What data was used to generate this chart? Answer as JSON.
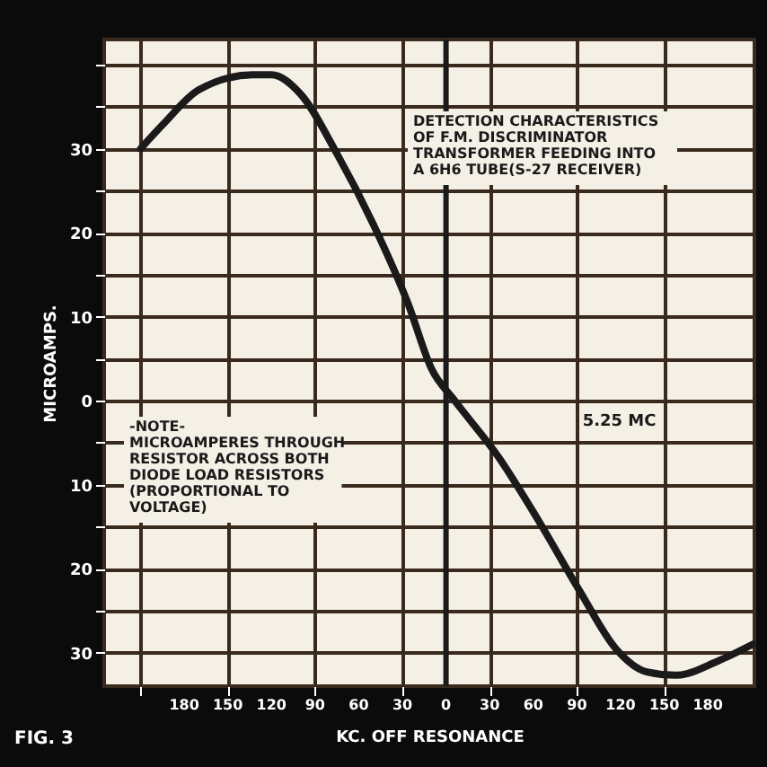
{
  "chart_data": {
    "type": "line",
    "xlabel": "KC. OFF RESONANCE",
    "ylabel": "MICROAMPS.",
    "annotations": [
      "DETECTION CHARACTERISTICS\nOF F.M. DISCRIMINATOR\nTRANSFORMER FEEDING INTO\nA 6H6 TUBE(S-27 RECEIVER)",
      "-NOTE-\nMICROAMPERES THROUGH\nRESISTOR ACROSS BOTH\nDIODE LOAD RESISTORS\n(PROPORTIONAL TO\nVOLTAGE)",
      "FIG. 3"
    ],
    "x": [
      -210,
      -194,
      -170,
      -133,
      -120,
      -100,
      -75,
      -50,
      -26,
      -10,
      6,
      36,
      64,
      92,
      117,
      138,
      158,
      187,
      211
    ],
    "series": [
      {
        "color": "#1a1a1a",
        "values": [
          30,
          33,
          37,
          38.8,
          38.8,
          36.5,
          29.4,
          21,
          11.5,
          3.8,
          0,
          -6.7,
          -14.4,
          -22.7,
          -29.6,
          -32.3,
          -32.7,
          -31,
          -29
        ]
      }
    ],
    "xlim": [
      -235,
      212
    ],
    "ylim": [
      -34,
      43
    ],
    "xticks": [
      {
        "value": -210,
        "label": null
      },
      {
        "value": -180,
        "label": "180"
      },
      {
        "value": -150,
        "label": "150"
      },
      {
        "value": -120,
        "label": "120"
      },
      {
        "value": -90,
        "label": "90"
      },
      {
        "value": -60,
        "label": "60"
      },
      {
        "value": -30,
        "label": "30"
      },
      0,
      30,
      60,
      90,
      120,
      150,
      180
    ],
    "yticks": [
      {
        "value": -30,
        "label": "30"
      },
      {
        "value": -25,
        "label": null
      },
      {
        "value": -20,
        "label": "20"
      },
      {
        "value": -15,
        "label": null
      },
      {
        "value": -10,
        "label": "10"
      },
      {
        "value": -5,
        "label": null
      },
      0,
      {
        "value": 5,
        "label": null
      },
      10,
      {
        "value": 15,
        "label": null
      },
      20,
      {
        "value": 25,
        "label": null
      },
      30,
      {
        "value": 35,
        "label": null
      },
      {
        "value": 40,
        "label": null
      }
    ],
    "ref_lines": [
      {
        "axis": "x",
        "value": 0,
        "label": "5.25 MC"
      }
    ],
    "grid": true,
    "line_style": "solid",
    "marker": "none"
  }
}
